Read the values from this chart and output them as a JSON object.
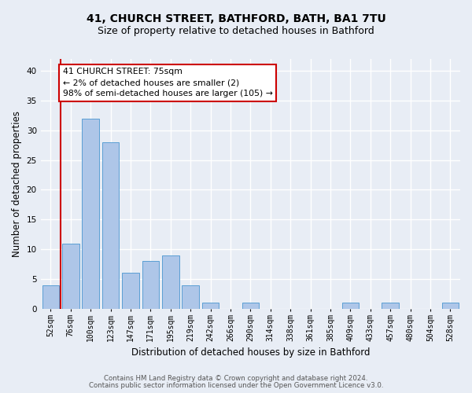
{
  "title": "41, CHURCH STREET, BATHFORD, BATH, BA1 7TU",
  "subtitle": "Size of property relative to detached houses in Bathford",
  "xlabel": "Distribution of detached houses by size in Bathford",
  "ylabel": "Number of detached properties",
  "bar_labels": [
    "52sqm",
    "76sqm",
    "100sqm",
    "123sqm",
    "147sqm",
    "171sqm",
    "195sqm",
    "219sqm",
    "242sqm",
    "266sqm",
    "290sqm",
    "314sqm",
    "338sqm",
    "361sqm",
    "385sqm",
    "409sqm",
    "433sqm",
    "457sqm",
    "480sqm",
    "504sqm",
    "528sqm"
  ],
  "bar_values": [
    4,
    11,
    32,
    28,
    6,
    8,
    9,
    4,
    1,
    0,
    1,
    0,
    0,
    0,
    0,
    1,
    0,
    1,
    0,
    0,
    1
  ],
  "bar_color": "#aec6e8",
  "bar_edge_color": "#5a9fd4",
  "ylim": [
    0,
    42
  ],
  "yticks": [
    0,
    5,
    10,
    15,
    20,
    25,
    30,
    35,
    40
  ],
  "annotation_title": "41 CHURCH STREET: 75sqm",
  "annotation_line1": "← 2% of detached houses are smaller (2)",
  "annotation_line2": "98% of semi-detached houses are larger (105) →",
  "annotation_box_color": "#ffffff",
  "annotation_border_color": "#cc0000",
  "property_line_color": "#cc0000",
  "footer1": "Contains HM Land Registry data © Crown copyright and database right 2024.",
  "footer2": "Contains public sector information licensed under the Open Government Licence v3.0.",
  "bg_color": "#e8edf5",
  "plot_bg_color": "#e8edf5",
  "grid_color": "#ffffff",
  "title_fontsize": 10,
  "subtitle_fontsize": 9,
  "tick_fontsize": 7,
  "ylabel_fontsize": 8.5,
  "xlabel_fontsize": 8.5
}
